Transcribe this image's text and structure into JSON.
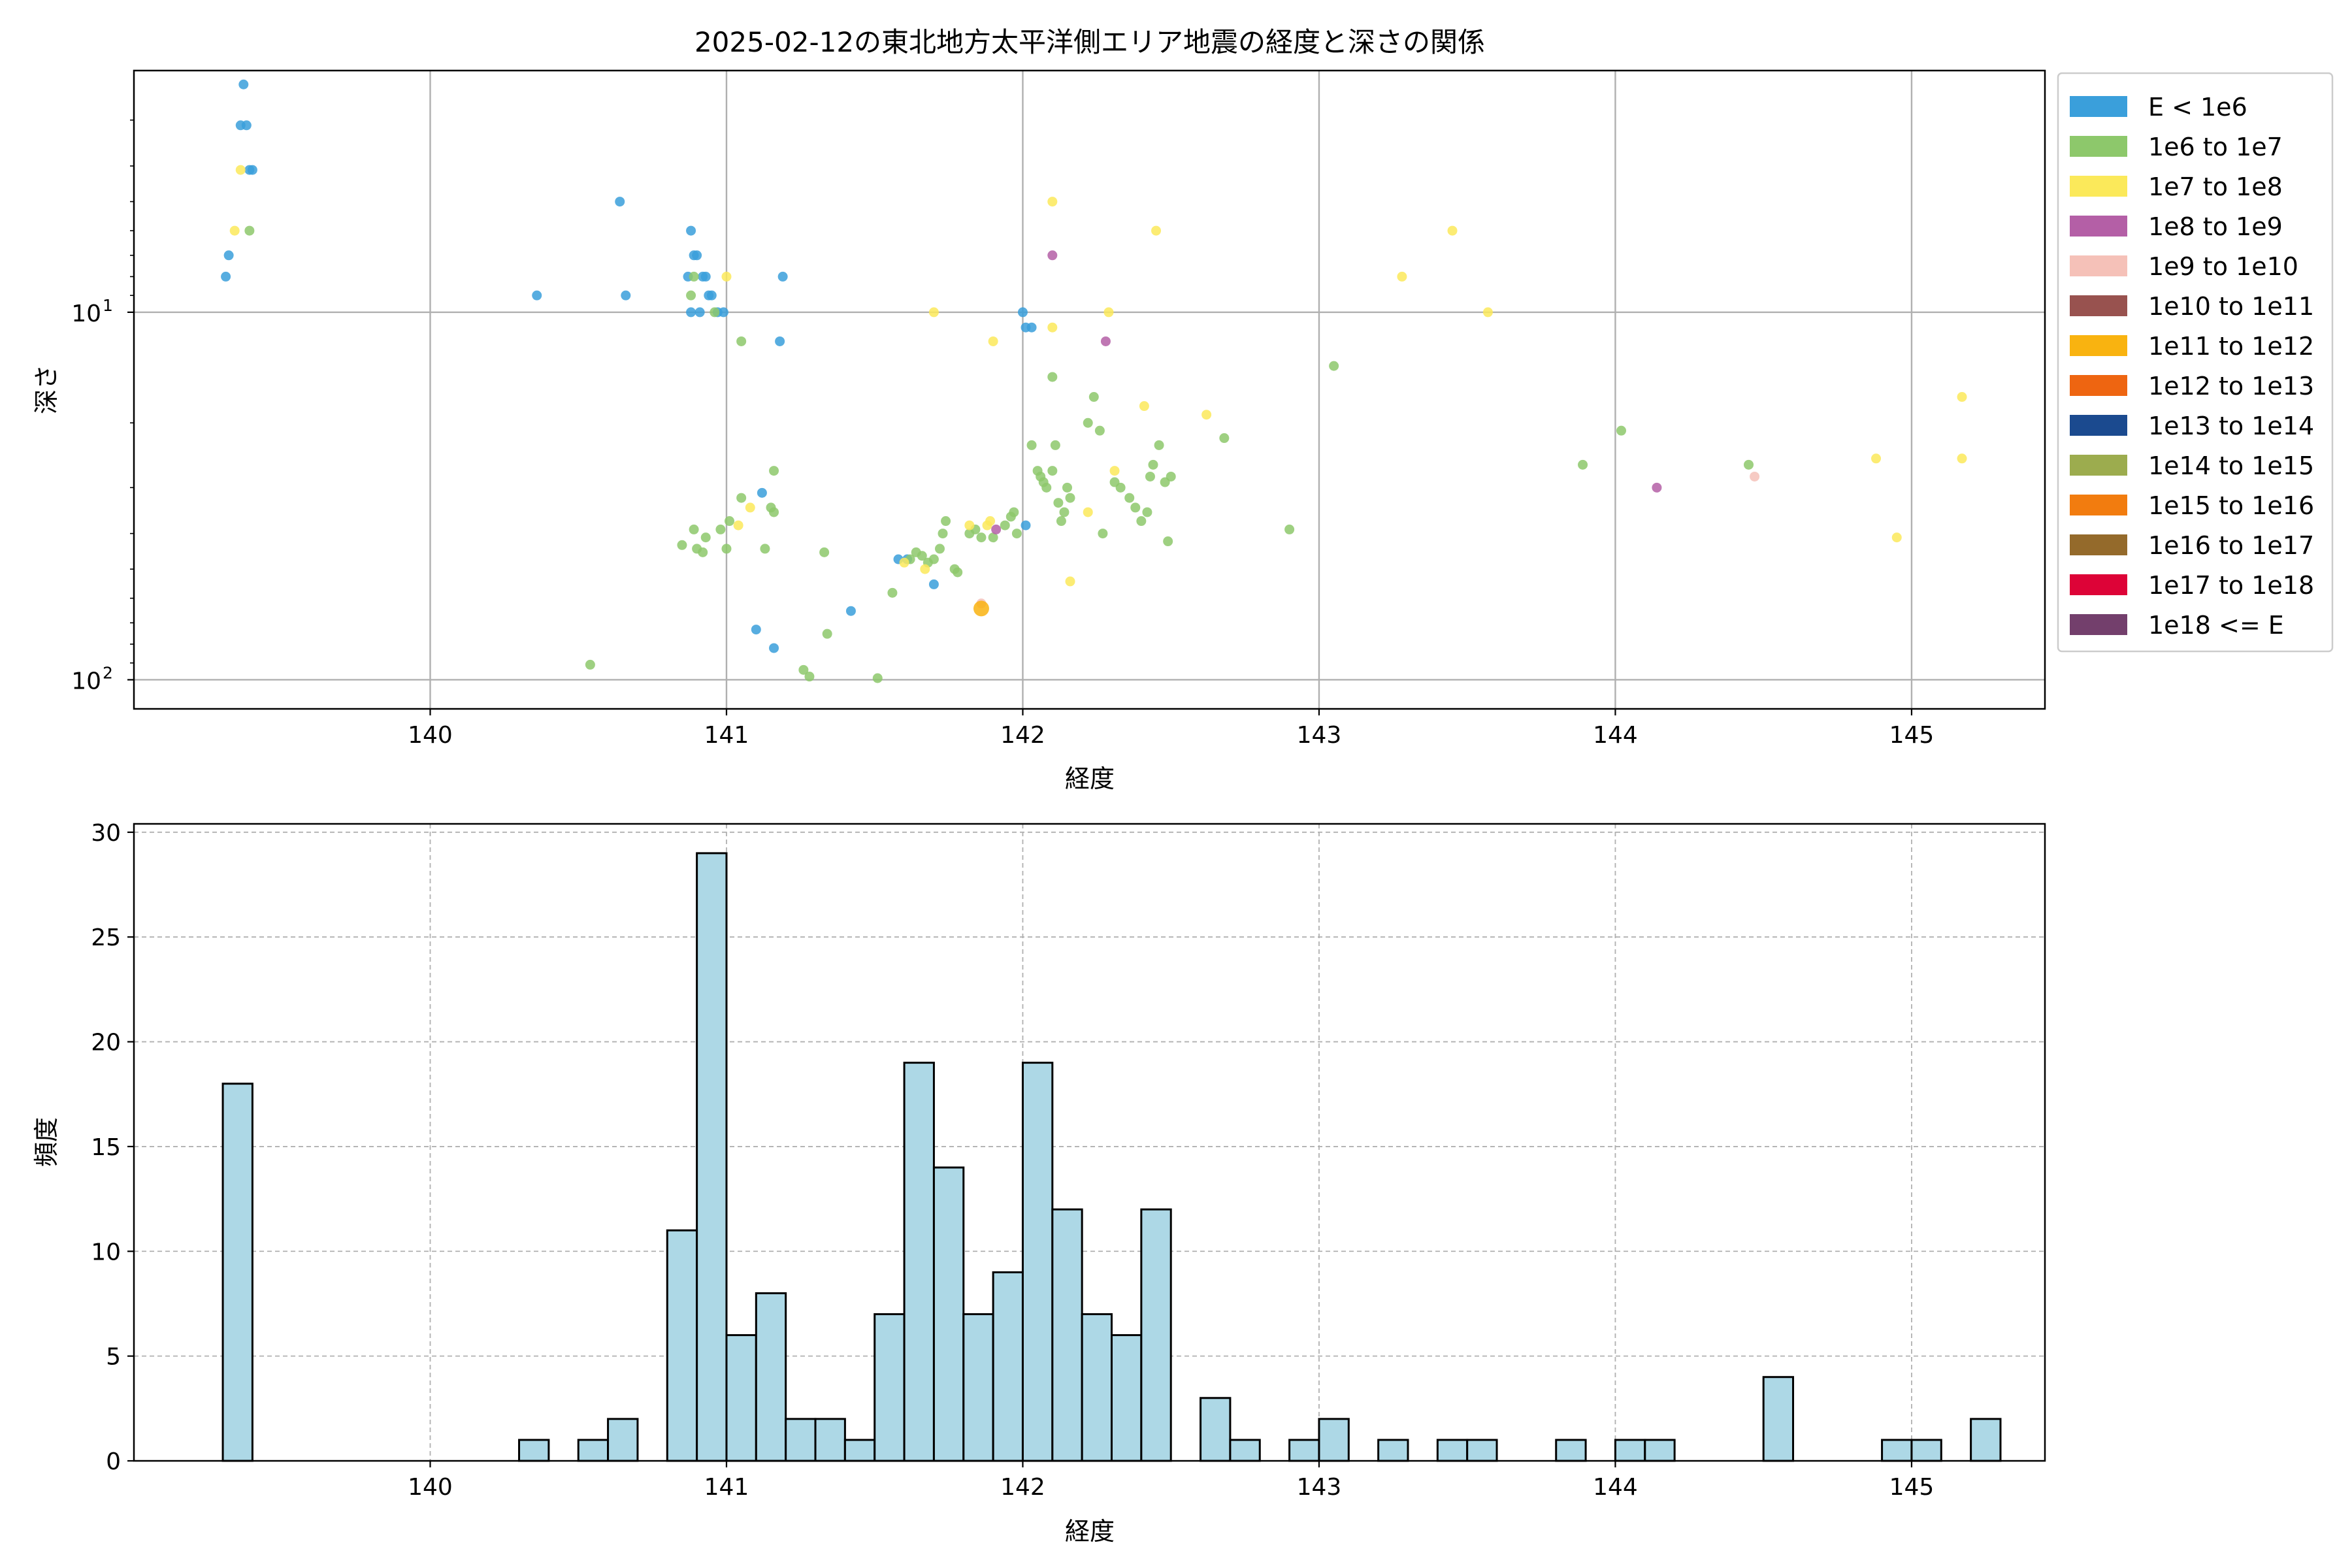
{
  "chart_data": [
    {
      "type": "scatter",
      "title": "2025-02-12の東北地方太平洋側エリア地震の経度と深さの関係",
      "xlabel": "経度",
      "ylabel": "深さ",
      "xlim": [
        139.0,
        145.45
      ],
      "ylim": [
        120,
        2.2
      ],
      "yscale": "log",
      "y_inverted": true,
      "x_ticks": [
        140,
        141,
        142,
        143,
        144,
        145
      ],
      "y_ticks": [
        {
          "value": 10,
          "label": "10",
          "exp": "1"
        },
        {
          "value": 100,
          "label": "10",
          "exp": "2"
        }
      ],
      "grid": true,
      "legend_position": "outside-right",
      "legend": [
        {
          "label": "E < 1e6",
          "color": "#3a9fdb"
        },
        {
          "label": "1e6 to 1e7",
          "color": "#8dc86b"
        },
        {
          "label": "1e7 to 1e8",
          "color": "#fbe95a"
        },
        {
          "label": "1e8 to 1e9",
          "color": "#b45fa6"
        },
        {
          "label": "1e9 to 1e10",
          "color": "#f5c1b8"
        },
        {
          "label": "1e10 to 1e11",
          "color": "#98524f"
        },
        {
          "label": "1e11 to 1e12",
          "color": "#f9b310"
        },
        {
          "label": "1e12 to 1e13",
          "color": "#ee6511"
        },
        {
          "label": "1e13 to 1e14",
          "color": "#1b4a8f"
        },
        {
          "label": "1e14 to 1e15",
          "color": "#9cac4e"
        },
        {
          "label": "1e15 to 1e16",
          "color": "#f27c0f"
        },
        {
          "label": "1e16 to 1e17",
          "color": "#946a2b"
        },
        {
          "label": "1e17 to 1e18",
          "color": "#dd0337"
        },
        {
          "label": "1e18 <= E",
          "color": "#733f6c"
        }
      ],
      "series": [
        {
          "name": "E < 1e6",
          "points": [
            [
              139.37,
              2.4
            ],
            [
              139.36,
              3.1
            ],
            [
              139.38,
              3.1
            ],
            [
              139.39,
              4.1
            ],
            [
              139.4,
              4.1
            ],
            [
              139.32,
              7.0
            ],
            [
              139.31,
              8.0
            ],
            [
              140.36,
              9.0
            ],
            [
              140.64,
              5.0
            ],
            [
              140.66,
              9.0
            ],
            [
              140.88,
              6.0
            ],
            [
              140.89,
              7.0
            ],
            [
              140.9,
              7.0
            ],
            [
              140.87,
              8.0
            ],
            [
              140.92,
              8.0
            ],
            [
              140.93,
              8.0
            ],
            [
              140.94,
              9.0
            ],
            [
              140.95,
              9.0
            ],
            [
              140.88,
              10.0
            ],
            [
              140.91,
              10.0
            ],
            [
              140.97,
              10.0
            ],
            [
              140.99,
              10.0
            ],
            [
              141.19,
              8.0
            ],
            [
              141.18,
              12.0
            ],
            [
              141.12,
              31.0
            ],
            [
              141.1,
              73.0
            ],
            [
              141.16,
              82.0
            ],
            [
              141.42,
              65.0
            ],
            [
              142.0,
              10.0
            ],
            [
              142.01,
              11.0
            ],
            [
              142.03,
              11.0
            ],
            [
              142.01,
              38.0
            ],
            [
              141.58,
              47.0
            ],
            [
              141.61,
              47.0
            ],
            [
              141.7,
              55.0
            ]
          ]
        },
        {
          "name": "1e6 to 1e7",
          "points": [
            [
              139.39,
              6.0
            ],
            [
              140.88,
              9.0
            ],
            [
              140.89,
              8.0
            ],
            [
              140.96,
              10.0
            ],
            [
              141.05,
              12.0
            ],
            [
              141.16,
              27.0
            ],
            [
              141.15,
              34.0
            ],
            [
              141.16,
              35.0
            ],
            [
              141.05,
              32.0
            ],
            [
              141.01,
              37.0
            ],
            [
              140.98,
              39.0
            ],
            [
              140.93,
              41.0
            ],
            [
              140.89,
              39.0
            ],
            [
              140.85,
              43.0
            ],
            [
              140.9,
              44.0
            ],
            [
              140.92,
              45.0
            ],
            [
              141.0,
              44.0
            ],
            [
              141.13,
              44.0
            ],
            [
              140.54,
              91.0
            ],
            [
              141.26,
              94.0
            ],
            [
              141.28,
              98.0
            ],
            [
              141.34,
              75.0
            ],
            [
              141.33,
              45.0
            ],
            [
              141.51,
              99.0
            ],
            [
              141.56,
              58.0
            ],
            [
              141.62,
              47.0
            ],
            [
              141.64,
              45.0
            ],
            [
              141.66,
              46.0
            ],
            [
              141.68,
              48.0
            ],
            [
              141.7,
              47.0
            ],
            [
              141.72,
              44.0
            ],
            [
              141.73,
              40.0
            ],
            [
              141.74,
              37.0
            ],
            [
              141.77,
              50.0
            ],
            [
              141.78,
              51.0
            ],
            [
              141.82,
              40.0
            ],
            [
              141.84,
              39.0
            ],
            [
              141.9,
              41.0
            ],
            [
              141.94,
              38.0
            ],
            [
              141.96,
              36.0
            ],
            [
              141.97,
              35.0
            ],
            [
              141.98,
              40.0
            ],
            [
              142.03,
              23.0
            ],
            [
              142.05,
              27.0
            ],
            [
              142.06,
              28.0
            ],
            [
              142.07,
              29.0
            ],
            [
              142.08,
              30.0
            ],
            [
              142.1,
              27.0
            ],
            [
              142.11,
              23.0
            ],
            [
              142.12,
              33.0
            ],
            [
              142.13,
              37.0
            ],
            [
              142.14,
              35.0
            ],
            [
              142.15,
              30.0
            ],
            [
              142.16,
              32.0
            ],
            [
              142.22,
              20.0
            ],
            [
              142.24,
              17.0
            ],
            [
              142.26,
              21.0
            ],
            [
              142.27,
              40.0
            ],
            [
              142.31,
              29.0
            ],
            [
              142.33,
              30.0
            ],
            [
              142.36,
              32.0
            ],
            [
              142.38,
              34.0
            ],
            [
              142.4,
              37.0
            ],
            [
              142.42,
              35.0
            ],
            [
              142.43,
              28.0
            ],
            [
              142.44,
              26.0
            ],
            [
              142.46,
              23.0
            ],
            [
              142.48,
              29.0
            ],
            [
              142.5,
              28.0
            ],
            [
              142.49,
              42.0
            ],
            [
              142.1,
              15.0
            ],
            [
              142.68,
              22.0
            ],
            [
              143.05,
              14.0
            ],
            [
              142.9,
              39.0
            ],
            [
              143.89,
              26.0
            ],
            [
              144.02,
              21.0
            ],
            [
              144.45,
              26.0
            ],
            [
              141.86,
              41.0
            ]
          ]
        },
        {
          "name": "1e7 to 1e8",
          "points": [
            [
              139.36,
              4.1
            ],
            [
              139.34,
              6.0
            ],
            [
              141.0,
              8.0
            ],
            [
              141.04,
              38.0
            ],
            [
              141.08,
              34.0
            ],
            [
              141.67,
              50.0
            ],
            [
              141.7,
              10.0
            ],
            [
              141.9,
              12.0
            ],
            [
              142.1,
              5.0
            ],
            [
              142.1,
              11.0
            ],
            [
              142.22,
              35.0
            ],
            [
              142.29,
              10.0
            ],
            [
              142.31,
              27.0
            ],
            [
              142.45,
              6.0
            ],
            [
              142.62,
              19.0
            ],
            [
              142.16,
              54.0
            ],
            [
              141.82,
              38.0
            ],
            [
              141.88,
              38.0
            ],
            [
              141.89,
              37.0
            ],
            [
              143.28,
              8.0
            ],
            [
              143.45,
              6.0
            ],
            [
              143.57,
              10.0
            ],
            [
              144.88,
              25.0
            ],
            [
              144.95,
              41.0
            ],
            [
              145.17,
              17.0
            ],
            [
              145.17,
              25.0
            ],
            [
              141.6,
              48.0
            ],
            [
              142.41,
              18.0
            ]
          ]
        },
        {
          "name": "1e8 to 1e9",
          "points": [
            [
              142.1,
              7.0
            ],
            [
              142.28,
              12.0
            ],
            [
              141.91,
              39.0
            ],
            [
              144.14,
              30.0
            ]
          ]
        },
        {
          "name": "1e9 to 1e10",
          "points": [
            [
              141.86,
              62.0
            ],
            [
              144.47,
              28.0
            ]
          ]
        },
        {
          "name": "1e11 to 1e12",
          "points": [
            [
              141.86,
              64.0
            ]
          ]
        }
      ]
    },
    {
      "type": "bar",
      "title": "",
      "xlabel": "経度",
      "ylabel": "頻度",
      "xlim": [
        139.0,
        145.45
      ],
      "ylim": [
        0,
        30.4
      ],
      "x_ticks": [
        140,
        141,
        142,
        143,
        144,
        145
      ],
      "y_ticks": [
        0,
        5,
        10,
        15,
        20,
        25,
        30
      ],
      "grid": true,
      "bar_color": "#add8e6",
      "bin_edges": [
        139.3,
        145.3
      ],
      "bin_count": 60,
      "counts": [
        18,
        0,
        0,
        0,
        0,
        0,
        0,
        0,
        0,
        0,
        1,
        0,
        1,
        2,
        0,
        11,
        29,
        6,
        8,
        2,
        2,
        1,
        7,
        19,
        14,
        7,
        9,
        19,
        12,
        7,
        6,
        12,
        0,
        3,
        1,
        0,
        1,
        2,
        0,
        1,
        0,
        1,
        1,
        0,
        0,
        1,
        0,
        1,
        1,
        0,
        0,
        0,
        4,
        0,
        0,
        0,
        1,
        1,
        0,
        2
      ]
    }
  ]
}
